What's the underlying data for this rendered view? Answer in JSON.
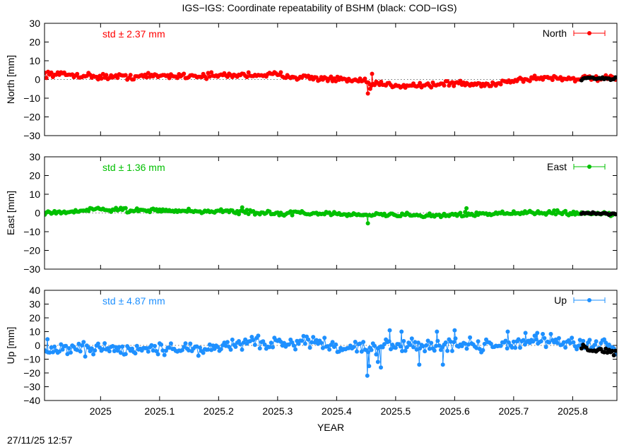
{
  "page": {
    "title": "IGS−IGS: Coordinate repeatability of BSHM (black: COD−IGS)",
    "timestamp": "27/11/25 12:57"
  },
  "chart_data": {
    "type": "line",
    "title": "IGS−IGS: Coordinate repeatability of BSHM (black: COD−IGS)",
    "xlabel": "YEAR",
    "xlim": [
      2024.905,
      2025.875
    ],
    "xticks": [
      "2025",
      "2025.1",
      "2025.2",
      "2025.3",
      "2025.4",
      "2025.5",
      "2025.6",
      "2025.7",
      "2025.8"
    ],
    "panels": [
      {
        "id": "north",
        "ylabel": "North [mm]",
        "ylim": [
          -30,
          30
        ],
        "yticks": [
          "30",
          "20",
          "10",
          "0",
          "−10",
          "−20",
          "−30"
        ],
        "legend": "North",
        "std_label": "std ± 2.37 mm",
        "color": "#ff0000",
        "anchors": [
          [
            2024.905,
            3
          ],
          [
            2024.95,
            2.5
          ],
          [
            2025.0,
            1.5
          ],
          [
            2025.05,
            1.5
          ],
          [
            2025.1,
            2
          ],
          [
            2025.15,
            2
          ],
          [
            2025.2,
            2
          ],
          [
            2025.25,
            2.5
          ],
          [
            2025.3,
            2.5
          ],
          [
            2025.35,
            1
          ],
          [
            2025.4,
            0
          ],
          [
            2025.44,
            -1
          ],
          [
            2025.46,
            -2.5
          ],
          [
            2025.5,
            -3
          ],
          [
            2025.55,
            -3
          ],
          [
            2025.6,
            -2
          ],
          [
            2025.65,
            -3
          ],
          [
            2025.7,
            -0.5
          ],
          [
            2025.75,
            1
          ],
          [
            2025.8,
            0.5
          ],
          [
            2025.875,
            0.5
          ]
        ],
        "spikes": [
          [
            2025.453,
            -7.5
          ],
          [
            2025.457,
            -5.0
          ],
          [
            2025.46,
            3.0
          ]
        ],
        "noise": 1.1,
        "cod_range": [
          2025.815,
          2025.875
        ],
        "cod_offset": 0
      },
      {
        "id": "east",
        "ylabel": "East [mm]",
        "ylim": [
          -30,
          30
        ],
        "yticks": [
          "30",
          "20",
          "10",
          "0",
          "−10",
          "−20",
          "−30"
        ],
        "legend": "East",
        "std_label": "std ± 1.36 mm",
        "color": "#00c000",
        "anchors": [
          [
            2024.905,
            0
          ],
          [
            2024.95,
            1
          ],
          [
            2025.0,
            1.8
          ],
          [
            2025.05,
            1.5
          ],
          [
            2025.1,
            1.5
          ],
          [
            2025.15,
            1
          ],
          [
            2025.2,
            0.8
          ],
          [
            2025.25,
            0.5
          ],
          [
            2025.3,
            0
          ],
          [
            2025.35,
            -0.2
          ],
          [
            2025.4,
            -0.5
          ],
          [
            2025.45,
            -1
          ],
          [
            2025.5,
            -1
          ],
          [
            2025.55,
            -1.5
          ],
          [
            2025.6,
            -1
          ],
          [
            2025.65,
            -0.5
          ],
          [
            2025.7,
            0
          ],
          [
            2025.75,
            0
          ],
          [
            2025.8,
            0
          ],
          [
            2025.875,
            -0.5
          ]
        ],
        "spikes": [
          [
            2025.453,
            -5.5
          ],
          [
            2025.62,
            2.5
          ],
          [
            2025.24,
            3.0
          ]
        ],
        "noise": 0.75,
        "cod_range": [
          2025.815,
          2025.875
        ],
        "cod_offset": 0
      },
      {
        "id": "up",
        "ylabel": "Up [mm]",
        "ylim": [
          -40,
          40
        ],
        "yticks": [
          "40",
          "30",
          "20",
          "10",
          "0",
          "−10",
          "−20",
          "−30",
          "−40"
        ],
        "legend": "Up",
        "std_label": "std ± 4.87 mm",
        "color": "#1e90ff",
        "anchors": [
          [
            2024.905,
            -3
          ],
          [
            2024.95,
            -2
          ],
          [
            2025.0,
            -3
          ],
          [
            2025.05,
            -4
          ],
          [
            2025.1,
            -2
          ],
          [
            2025.15,
            -3
          ],
          [
            2025.2,
            -2
          ],
          [
            2025.25,
            2
          ],
          [
            2025.3,
            1
          ],
          [
            2025.35,
            2
          ],
          [
            2025.4,
            1
          ],
          [
            2025.45,
            -2
          ],
          [
            2025.5,
            1
          ],
          [
            2025.55,
            0
          ],
          [
            2025.6,
            2
          ],
          [
            2025.65,
            -1
          ],
          [
            2025.7,
            2
          ],
          [
            2025.75,
            3
          ],
          [
            2025.8,
            2
          ],
          [
            2025.875,
            -2
          ]
        ],
        "spikes": [
          [
            2025.452,
            -22
          ],
          [
            2025.455,
            -15
          ],
          [
            2025.47,
            -12
          ],
          [
            2025.475,
            -16
          ],
          [
            2025.54,
            -14
          ],
          [
            2025.58,
            -14
          ],
          [
            2024.91,
            4.5
          ],
          [
            2025.49,
            11
          ],
          [
            2025.51,
            10
          ],
          [
            2025.57,
            10
          ],
          [
            2025.6,
            11
          ],
          [
            2025.69,
            10
          ],
          [
            2025.72,
            9
          ],
          [
            2025.74,
            9
          ]
        ],
        "noise": 3.4,
        "cod_range": [
          2025.815,
          2025.875
        ],
        "cod_offset": -3
      }
    ]
  }
}
